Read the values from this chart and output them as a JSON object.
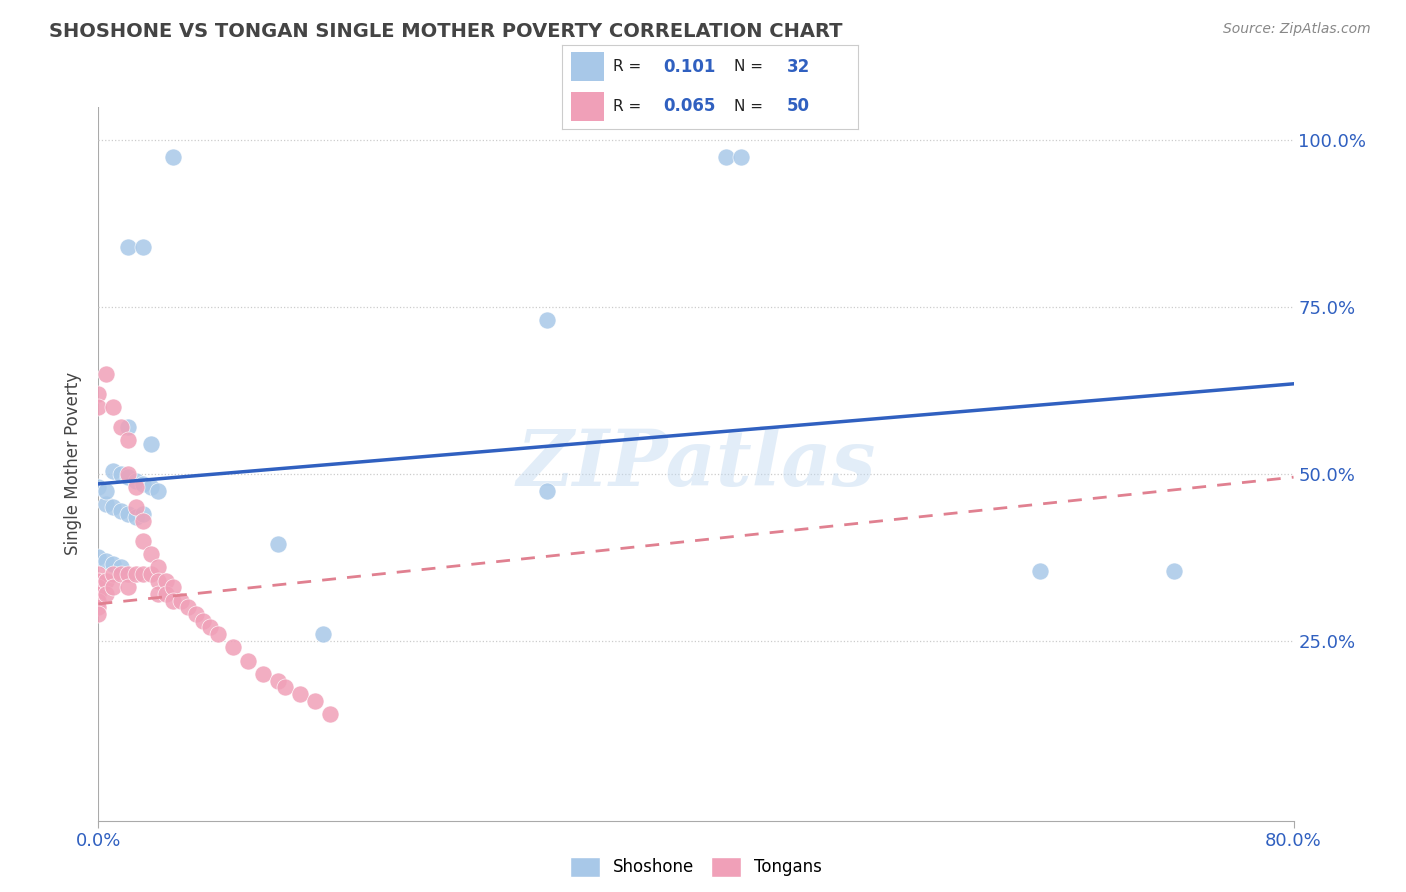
{
  "title": "SHOSHONE VS TONGAN SINGLE MOTHER POVERTY CORRELATION CHART",
  "source": "Source: ZipAtlas.com",
  "ylabel": "Single Mother Poverty",
  "xlim": [
    0.0,
    0.8
  ],
  "ylim": [
    -0.02,
    1.05
  ],
  "watermark": "ZIPatlas",
  "legend_shoshone_R": "0.101",
  "legend_shoshone_N": "32",
  "legend_tongan_R": "0.065",
  "legend_tongan_N": "50",
  "shoshone_color": "#a8c8e8",
  "tongan_color": "#f0a0b8",
  "shoshone_line_color": "#3060c0",
  "tongan_line_color": "#e08090",
  "background_color": "#ffffff",
  "shoshone_x": [
    0.05,
    0.3,
    0.42,
    0.43,
    0.02,
    0.03,
    0.02,
    0.035,
    0.01,
    0.015,
    0.02,
    0.025,
    0.03,
    0.035,
    0.04,
    0.005,
    0.01,
    0.015,
    0.02,
    0.025,
    0.0,
    0.005,
    0.01,
    0.015,
    0.12,
    0.15,
    0.63,
    0.72,
    0.3,
    0.0,
    0.005,
    0.03
  ],
  "shoshone_y": [
    0.975,
    0.73,
    0.975,
    0.975,
    0.84,
    0.84,
    0.57,
    0.545,
    0.505,
    0.5,
    0.495,
    0.49,
    0.485,
    0.48,
    0.475,
    0.455,
    0.45,
    0.445,
    0.44,
    0.435,
    0.375,
    0.37,
    0.365,
    0.36,
    0.395,
    0.26,
    0.355,
    0.355,
    0.475,
    0.48,
    0.475,
    0.44
  ],
  "tongan_x": [
    0.0,
    0.0,
    0.0,
    0.0,
    0.0,
    0.0,
    0.0,
    0.0,
    0.0,
    0.005,
    0.005,
    0.005,
    0.01,
    0.01,
    0.01,
    0.015,
    0.015,
    0.02,
    0.02,
    0.02,
    0.02,
    0.025,
    0.025,
    0.025,
    0.03,
    0.03,
    0.03,
    0.035,
    0.035,
    0.04,
    0.04,
    0.04,
    0.045,
    0.045,
    0.05,
    0.05,
    0.055,
    0.06,
    0.065,
    0.07,
    0.075,
    0.08,
    0.09,
    0.1,
    0.11,
    0.12,
    0.125,
    0.135,
    0.145,
    0.155
  ],
  "tongan_y": [
    0.62,
    0.6,
    0.35,
    0.34,
    0.33,
    0.32,
    0.31,
    0.3,
    0.29,
    0.65,
    0.34,
    0.32,
    0.6,
    0.35,
    0.33,
    0.57,
    0.35,
    0.55,
    0.5,
    0.35,
    0.33,
    0.48,
    0.45,
    0.35,
    0.43,
    0.4,
    0.35,
    0.38,
    0.35,
    0.36,
    0.34,
    0.32,
    0.34,
    0.32,
    0.33,
    0.31,
    0.31,
    0.3,
    0.29,
    0.28,
    0.27,
    0.26,
    0.24,
    0.22,
    0.2,
    0.19,
    0.18,
    0.17,
    0.16,
    0.14
  ],
  "shoshone_line": [
    0.0,
    0.8,
    0.485,
    0.635
  ],
  "tongan_line": [
    0.0,
    0.8,
    0.305,
    0.495
  ],
  "ytick_vals": [
    0.25,
    0.5,
    0.75,
    1.0
  ],
  "ytick_labels": [
    "25.0%",
    "50.0%",
    "75.0%",
    "100.0%"
  ]
}
